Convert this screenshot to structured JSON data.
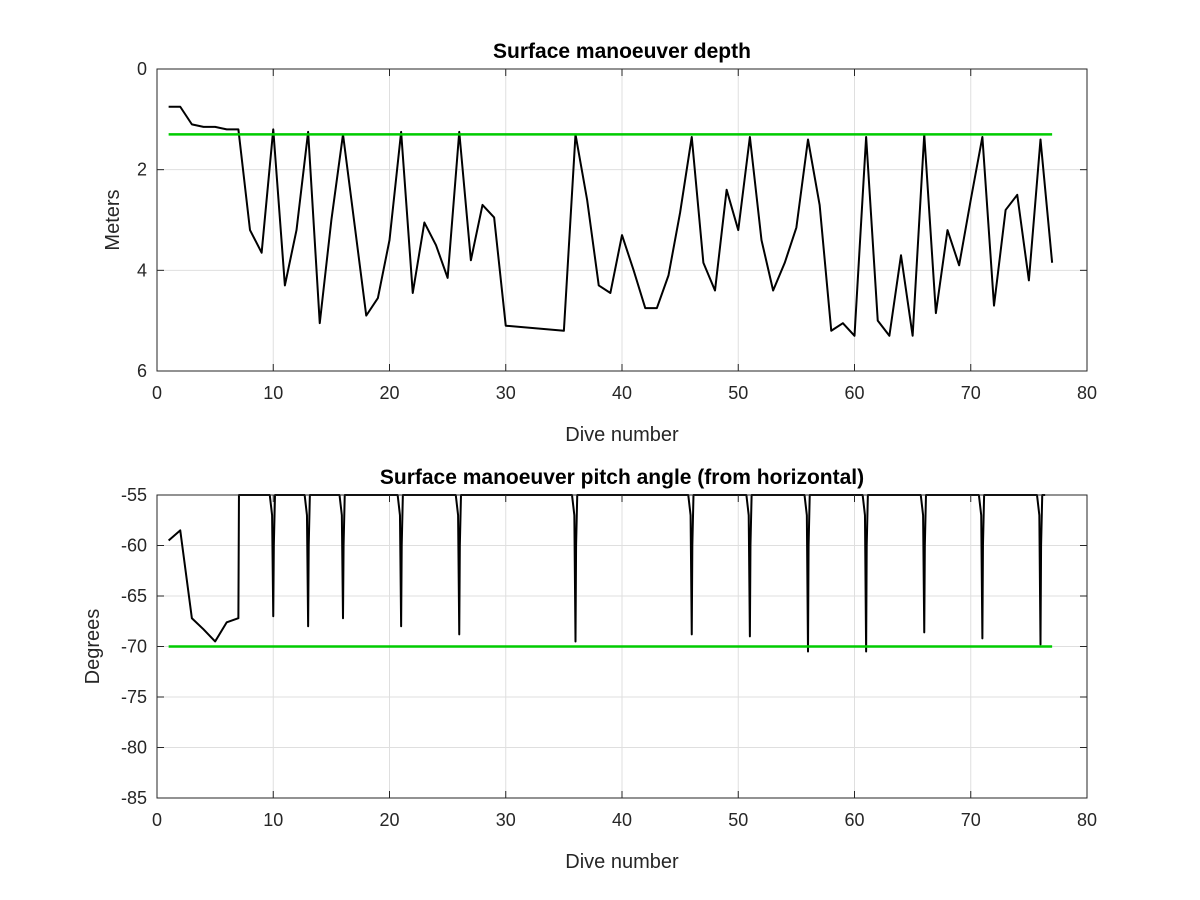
{
  "chart_data": [
    {
      "type": "line",
      "title": "Surface manoeuver depth",
      "xlabel": "Dive number",
      "ylabel": "Meters",
      "xlim": [
        0,
        80
      ],
      "ylim": [
        0,
        6
      ],
      "y_reversed": true,
      "grid": true,
      "xticks": [
        "0",
        "10",
        "20",
        "30",
        "40",
        "50",
        "60",
        "70",
        "80"
      ],
      "yticks": [
        "0",
        "2",
        "4",
        "6"
      ],
      "series": [
        {
          "color": "#000000",
          "x": [
            1,
            2,
            3,
            4,
            5,
            6,
            7,
            8,
            9,
            10,
            11,
            12,
            13,
            14,
            15,
            16,
            17,
            18,
            19,
            20,
            21,
            22,
            23,
            24,
            25,
            26,
            27,
            28,
            29,
            30,
            35,
            36,
            37,
            38,
            39,
            40,
            41,
            42,
            43,
            44,
            45,
            46,
            47,
            48,
            49,
            50,
            51,
            52,
            53,
            54,
            55,
            56,
            57,
            58,
            59,
            60,
            61,
            62,
            63,
            64,
            65,
            66,
            67,
            68,
            69,
            70,
            71,
            72,
            73,
            74,
            75,
            76,
            77
          ],
          "y": [
            0.75,
            0.75,
            1.1,
            1.15,
            1.15,
            1.2,
            1.2,
            3.2,
            3.65,
            1.2,
            4.3,
            3.2,
            1.25,
            5.05,
            3.0,
            1.3,
            3.1,
            4.9,
            4.55,
            3.4,
            1.25,
            4.45,
            3.05,
            3.5,
            4.15,
            1.25,
            3.8,
            2.7,
            2.95,
            5.1,
            5.2,
            1.3,
            2.6,
            4.3,
            4.45,
            3.3,
            4.0,
            4.75,
            4.75,
            4.1,
            2.85,
            1.35,
            3.85,
            4.4,
            2.4,
            3.2,
            1.35,
            3.4,
            4.4,
            3.85,
            3.15,
            1.4,
            2.7,
            5.2,
            5.05,
            5.3,
            1.35,
            5.0,
            5.3,
            3.7,
            5.3,
            1.3,
            4.85,
            3.2,
            3.9,
            2.6,
            1.35,
            4.7,
            2.8,
            2.5,
            4.2,
            1.4,
            3.85
          ]
        },
        {
          "color": "#00cc00",
          "x": [
            1,
            77
          ],
          "y": [
            1.3,
            1.3
          ]
        }
      ]
    },
    {
      "type": "line",
      "title": "Surface manoeuver pitch angle (from horizontal)",
      "xlabel": "Dive number",
      "ylabel": "Degrees",
      "xlim": [
        0,
        80
      ],
      "ylim": [
        -85,
        -55
      ],
      "grid": true,
      "xticks": [
        "0",
        "10",
        "20",
        "30",
        "40",
        "50",
        "60",
        "70",
        "80"
      ],
      "yticks": [
        "-85",
        "-80",
        "-75",
        "-70",
        "-65",
        "-60",
        "-55"
      ],
      "series": [
        {
          "color": "#000000",
          "x": [
            1,
            2,
            3,
            4,
            5,
            6,
            7,
            7.05,
            7.2,
            9.7,
            9.9,
            10.0,
            10.05,
            10.15,
            12.7,
            12.9,
            13.0,
            13.05,
            13.15,
            15.7,
            15.9,
            16.0,
            16.05,
            16.15,
            20.7,
            20.9,
            21.0,
            21.05,
            21.15,
            25.7,
            25.9,
            26.0,
            26.05,
            26.15,
            35.7,
            35.9,
            36.0,
            36.05,
            36.15,
            45.7,
            45.9,
            46.0,
            46.05,
            46.15,
            50.7,
            50.9,
            51.0,
            51.05,
            51.15,
            55.7,
            55.9,
            56.0,
            56.05,
            56.15,
            60.7,
            60.9,
            61.0,
            61.05,
            61.15,
            65.7,
            65.9,
            66.0,
            66.05,
            66.15,
            70.7,
            70.9,
            71.0,
            71.05,
            71.15,
            75.7,
            75.9,
            76.0,
            76.05,
            76.15,
            76.4
          ],
          "y": [
            -59.5,
            -58.5,
            -67.2,
            -68.3,
            -69.5,
            -67.6,
            -67.2,
            -55,
            -55,
            -55,
            -57,
            -67.0,
            -60,
            -55,
            -55,
            -57,
            -68.0,
            -60,
            -55,
            -55,
            -57,
            -67.2,
            -60,
            -55,
            -55,
            -57,
            -68.0,
            -60,
            -55,
            -55,
            -57,
            -68.8,
            -60,
            -55,
            -55,
            -57,
            -69.5,
            -60,
            -55,
            -55,
            -57,
            -68.8,
            -60,
            -55,
            -55,
            -57,
            -69.0,
            -60,
            -55,
            -55,
            -57,
            -70.5,
            -60,
            -55,
            -55,
            -57,
            -70.5,
            -60,
            -55,
            -55,
            -57,
            -68.6,
            -60,
            -55,
            -55,
            -57,
            -69.2,
            -60,
            -55,
            -55,
            -57,
            -69.8,
            -60,
            -55,
            -55
          ]
        },
        {
          "color": "#00cc00",
          "x": [
            1,
            77
          ],
          "y": [
            -70,
            -70
          ]
        }
      ]
    }
  ]
}
